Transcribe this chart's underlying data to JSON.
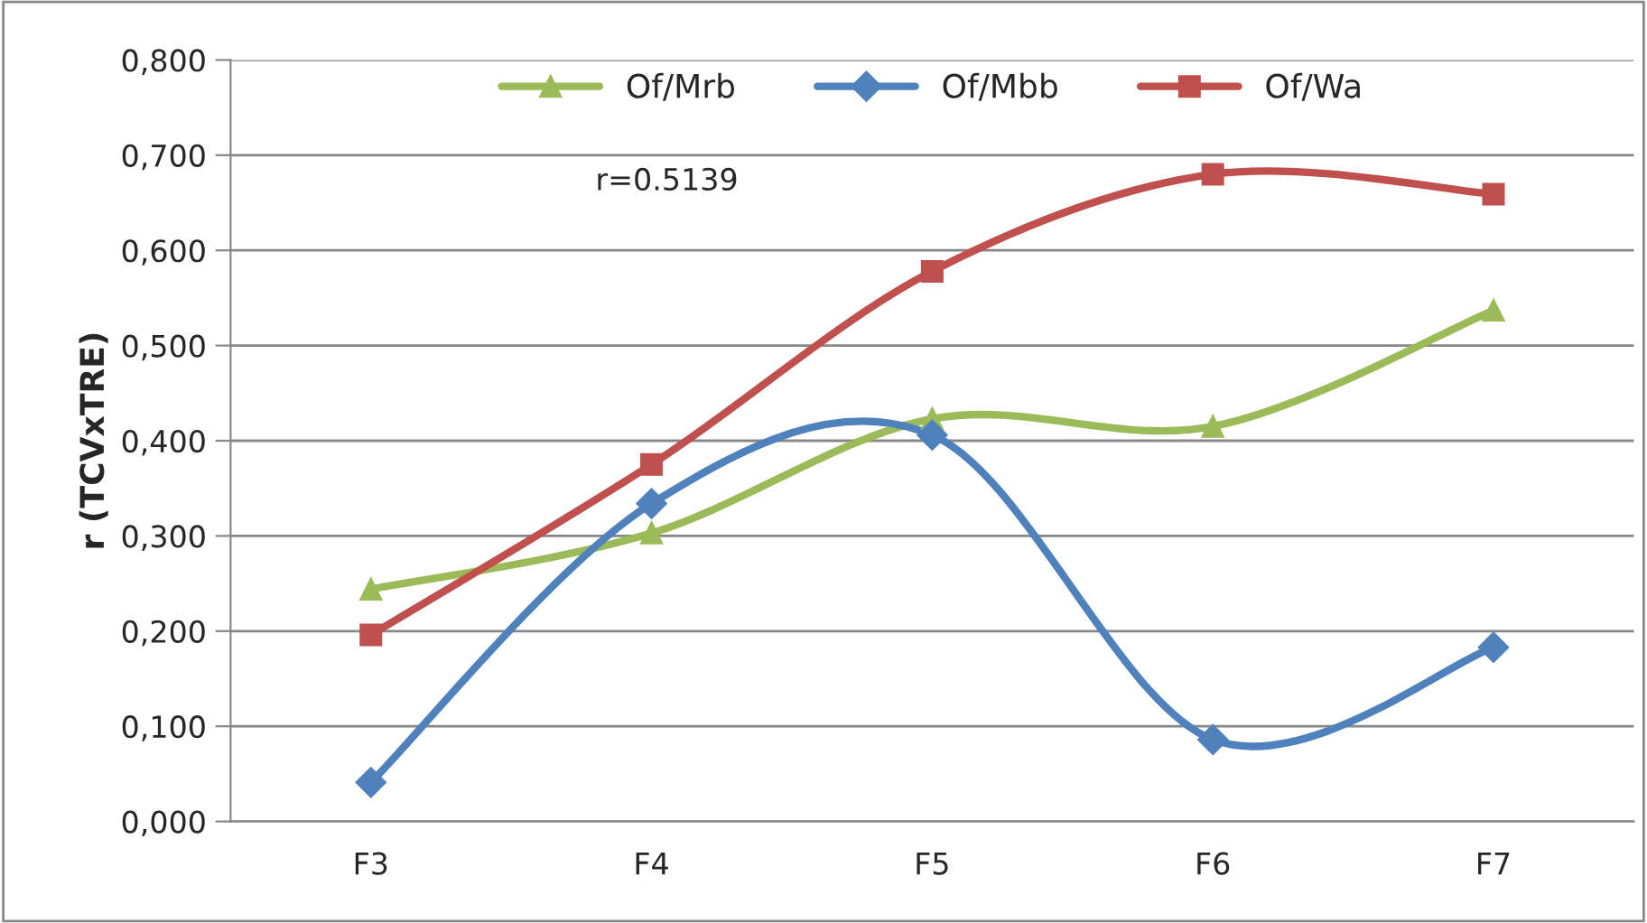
{
  "chart_data": {
    "type": "line",
    "ylabel": "r (TCVxTRE)",
    "categories": [
      "F3",
      "F4",
      "F5",
      "F6",
      "F7"
    ],
    "series": [
      {
        "name": "Of/Mrb",
        "color": "#9bbb59",
        "marker": "triangle",
        "values": [
          0.244,
          0.303,
          0.423,
          0.415,
          0.537
        ]
      },
      {
        "name": "Of/Mbb",
        "color": "#4f81bd",
        "marker": "diamond",
        "values": [
          0.041,
          0.334,
          0.406,
          0.086,
          0.183
        ]
      },
      {
        "name": "Of/Wa",
        "color": "#c0504d",
        "marker": "square",
        "values": [
          0.196,
          0.375,
          0.578,
          0.68,
          0.659
        ]
      }
    ],
    "ylim": [
      0,
      0.8
    ],
    "yticks": [
      {
        "value": 0,
        "label": "0,000"
      },
      {
        "value": 0.1,
        "label": "0,100"
      },
      {
        "value": 0.2,
        "label": "0,200"
      },
      {
        "value": 0.3,
        "label": "0,300"
      },
      {
        "value": 0.4,
        "label": "0,400"
      },
      {
        "value": 0.5,
        "label": "0,500"
      },
      {
        "value": 0.6,
        "label": "0,600"
      },
      {
        "value": 0.7,
        "label": "0,700"
      },
      {
        "value": 0.8,
        "label": "0,800"
      }
    ],
    "grid": "y",
    "legend": "top",
    "annotations": [
      "r=0.5139"
    ]
  }
}
